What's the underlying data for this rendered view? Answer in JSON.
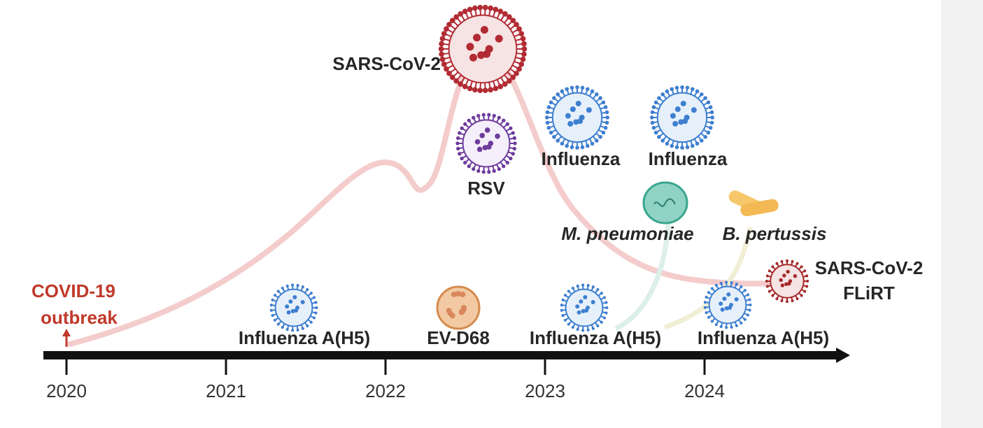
{
  "timeline": {
    "years": [
      "2020",
      "2021",
      "2022",
      "2023",
      "2024"
    ]
  },
  "labels": {
    "covid_outbreak": [
      "COVID-19",
      "outbreak"
    ],
    "sars_cov_2": "SARS-CoV-2",
    "rsv": "RSV",
    "influenza_1": "Influenza",
    "influenza_2": "Influenza",
    "m_pneumoniae": "M. pneumoniae",
    "b_pertussis": "B. pertussis",
    "sars_cov_2_flirt": [
      "SARS-CoV-2",
      "FLiRT"
    ],
    "influenza_a_h5_1": "Influenza A(H5)",
    "ev_d68": "EV-D68",
    "influenza_a_h5_2": "Influenza A(H5)",
    "influenza_a_h5_3": "Influenza A(H5)"
  }
}
